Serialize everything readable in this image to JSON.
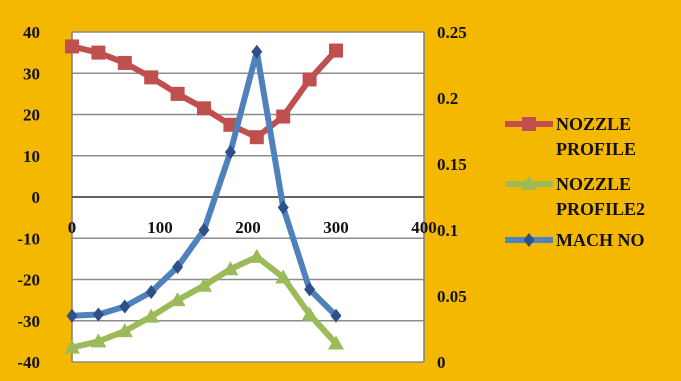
{
  "chart_data": {
    "type": "line",
    "x_axis": {
      "ticks": [
        0,
        100,
        200,
        300,
        400
      ],
      "range": [
        0,
        400
      ],
      "crosses_y_at": 0
    },
    "y_left": {
      "ticks": [
        40,
        30,
        20,
        10,
        0,
        -10,
        -20,
        -30,
        -40
      ],
      "range": [
        -40,
        40
      ]
    },
    "y_right": {
      "ticks": [
        0.25,
        0.2,
        0.15,
        0.1,
        0.05,
        0
      ],
      "tick_labels": [
        "0.25",
        "0.2",
        "0.15",
        "0.1",
        "0.05",
        "0"
      ],
      "range": [
        0,
        0.25
      ]
    },
    "grid": true,
    "legend_position": "right",
    "series": [
      {
        "name": "NOZZLE PROFILE",
        "legend_lines": [
          "NOZZLE",
          "PROFILE"
        ],
        "axis": "left",
        "marker": "square",
        "color": "#c0504d",
        "x": [
          0,
          30,
          60,
          90,
          120,
          150,
          180,
          210,
          240,
          270,
          300
        ],
        "y": [
          36.5,
          35,
          32.5,
          29,
          25,
          21.5,
          17.5,
          14.5,
          19.5,
          28.5,
          35.5
        ]
      },
      {
        "name": "NOZZLE PROFILE2",
        "legend_lines": [
          "NOZZLE",
          "PROFILE2"
        ],
        "axis": "left",
        "marker": "triangle",
        "color": "#9bbb59",
        "x": [
          0,
          30,
          60,
          90,
          120,
          150,
          180,
          210,
          240,
          270,
          300
        ],
        "y": [
          -36.5,
          -35,
          -32.5,
          -29,
          -25,
          -21.5,
          -17.5,
          -14.5,
          -19.5,
          -28.5,
          -35.5
        ]
      },
      {
        "name": "MACH NO",
        "legend_lines": [
          "MACH NO"
        ],
        "axis": "right",
        "marker": "diamond",
        "color": "#4f81bd",
        "x": [
          0,
          30,
          60,
          90,
          120,
          150,
          180,
          210,
          240,
          270,
          300
        ],
        "y": [
          0.035,
          0.036,
          0.042,
          0.053,
          0.072,
          0.1,
          0.159,
          0.235,
          0.117,
          0.055,
          0.035
        ]
      }
    ]
  }
}
